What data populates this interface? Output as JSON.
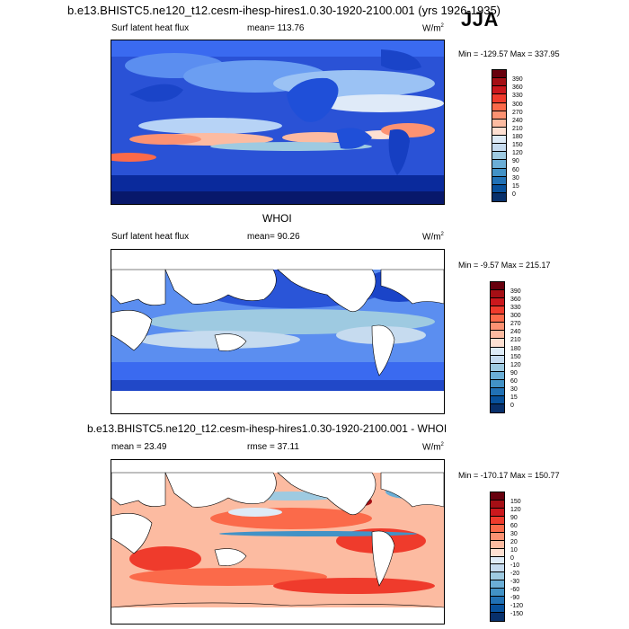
{
  "header": {
    "title": "b.e13.BHISTC5.ne120_t12.cesm-ihesp-hires1.0.30-1920-2100.001 (yrs 1926-1935)",
    "season": "JJA"
  },
  "panel1": {
    "variable": "Surf latent heat flux",
    "mean_text": "mean= 113.76",
    "units": "W/m",
    "units_sup": "2",
    "minmax": "Min = -129.57 Max = 337.95",
    "levels": [
      "390",
      "360",
      "330",
      "300",
      "270",
      "240",
      "210",
      "180",
      "150",
      "120",
      "90",
      "60",
      "30",
      "15",
      "0"
    ],
    "colors": [
      "#67000d",
      "#a50f15",
      "#cb181d",
      "#ef3b2c",
      "#fb6a4a",
      "#fc9272",
      "#fcbba1",
      "#fee0d2",
      "#deebf7",
      "#c6dbef",
      "#9ecae1",
      "#6baed6",
      "#4292c6",
      "#2171b5",
      "#08519c",
      "#08306b"
    ]
  },
  "panel2": {
    "heading": "WHOI",
    "variable": "Surf latent heat flux",
    "mean_text": "mean=  90.26",
    "units": "W/m",
    "units_sup": "2",
    "minmax": "Min =  -9.57 Max = 215.17",
    "levels": [
      "390",
      "360",
      "330",
      "300",
      "270",
      "240",
      "210",
      "180",
      "150",
      "120",
      "90",
      "60",
      "30",
      "15",
      "0"
    ],
    "colors": [
      "#67000d",
      "#a50f15",
      "#cb181d",
      "#ef3b2c",
      "#fb6a4a",
      "#fc9272",
      "#fcbba1",
      "#fee0d2",
      "#deebf7",
      "#c6dbef",
      "#9ecae1",
      "#6baed6",
      "#4292c6",
      "#2171b5",
      "#08519c",
      "#08306b"
    ]
  },
  "panel3": {
    "heading": "b.e13.BHISTC5.ne120_t12.cesm-ihesp-hires1.0.30-1920-2100.001 - WHOI",
    "mean_text": "mean =  23.49",
    "rmse_text": "rmse =  37.11",
    "units": "W/m",
    "units_sup": "2",
    "minmax": "Min = -170.17 Max = 150.77",
    "levels": [
      "150",
      "120",
      "90",
      "60",
      "30",
      "20",
      "10",
      "0",
      "-10",
      "-20",
      "-30",
      "-60",
      "-90",
      "-120",
      "-150"
    ],
    "colors": [
      "#67000d",
      "#a50f15",
      "#cb181d",
      "#ef3b2c",
      "#fb6a4a",
      "#fc9272",
      "#fcbba1",
      "#fee0d2",
      "#deebf7",
      "#c6dbef",
      "#9ecae1",
      "#6baed6",
      "#4292c6",
      "#2171b5",
      "#08519c",
      "#08306b"
    ]
  }
}
